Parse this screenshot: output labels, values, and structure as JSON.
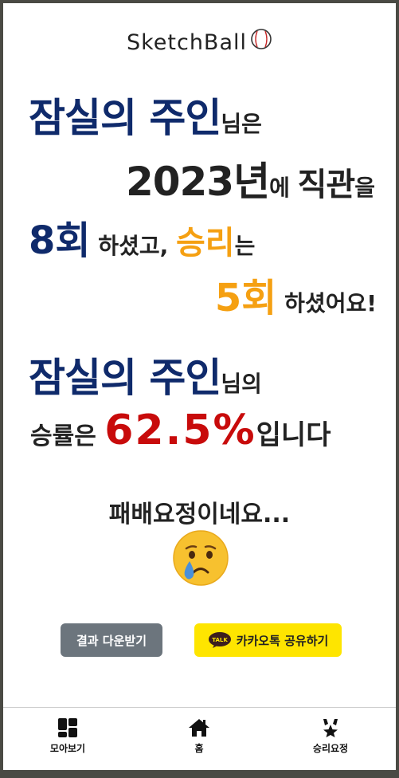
{
  "logo": {
    "text": "SketchBall"
  },
  "result": {
    "team_name": "잠실의 주인",
    "suffix_1": "님은",
    "year": "2023",
    "year_unit": "년",
    "particle_e": "에 ",
    "attended": "직관",
    "particle_eul": "을",
    "games_count": "8회",
    "did_1": " 하셨고, ",
    "wins_label": "승리",
    "particle_neun": "는",
    "wins_count": "5회",
    "did_2": " 하셨어요!",
    "suffix_2": "님의",
    "rate_label": "승률은 ",
    "win_rate": "62.5%",
    "rate_end": "입니다"
  },
  "verdict": {
    "text": "패배요정이네요..."
  },
  "icons": {
    "emoji": "crying-face-emoji",
    "ball": "baseball-icon",
    "talk": "kakao-talk-icon",
    "gallery": "gallery-grid-icon",
    "home": "home-icon",
    "trophy": "victory-fairy-icon"
  },
  "buttons": {
    "download": "결과 다운받기",
    "kakao_share": "카카오톡 공유하기",
    "talk_badge": "TALK"
  },
  "nav": {
    "gallery": "모아보기",
    "home": "홈",
    "victory": "승리요정"
  },
  "colors": {
    "navy": "#0f2a6b",
    "orange": "#f5a012",
    "red": "#c80b0b",
    "kakao_yellow": "#fee500",
    "download_gray": "#6c757d"
  }
}
